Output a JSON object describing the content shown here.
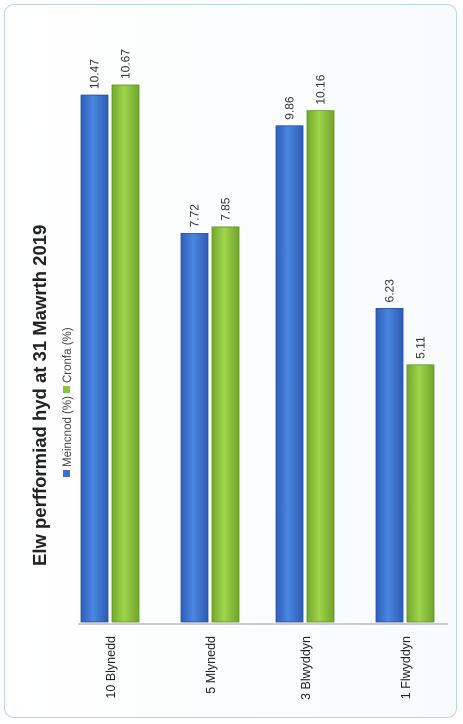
{
  "chart_data": {
    "type": "bar",
    "orientation": "rotated-90",
    "title": "Elw perfformiad hyd at 31 Mawrth 2019",
    "categories": [
      "10 Blynedd",
      "5 Mlynedd",
      "3 Blwyddyn",
      "1 Flwyddyn"
    ],
    "series": [
      {
        "name": "Meincnod (%)",
        "values": [
          10.47,
          7.72,
          9.86,
          6.23
        ],
        "color": "#3a6fcc"
      },
      {
        "name": "Cronfa (%)",
        "values": [
          10.67,
          7.85,
          10.16,
          5.11
        ],
        "color": "#8cc43c"
      }
    ],
    "ylim": [
      0,
      12
    ],
    "grid": false,
    "legend": "top"
  }
}
